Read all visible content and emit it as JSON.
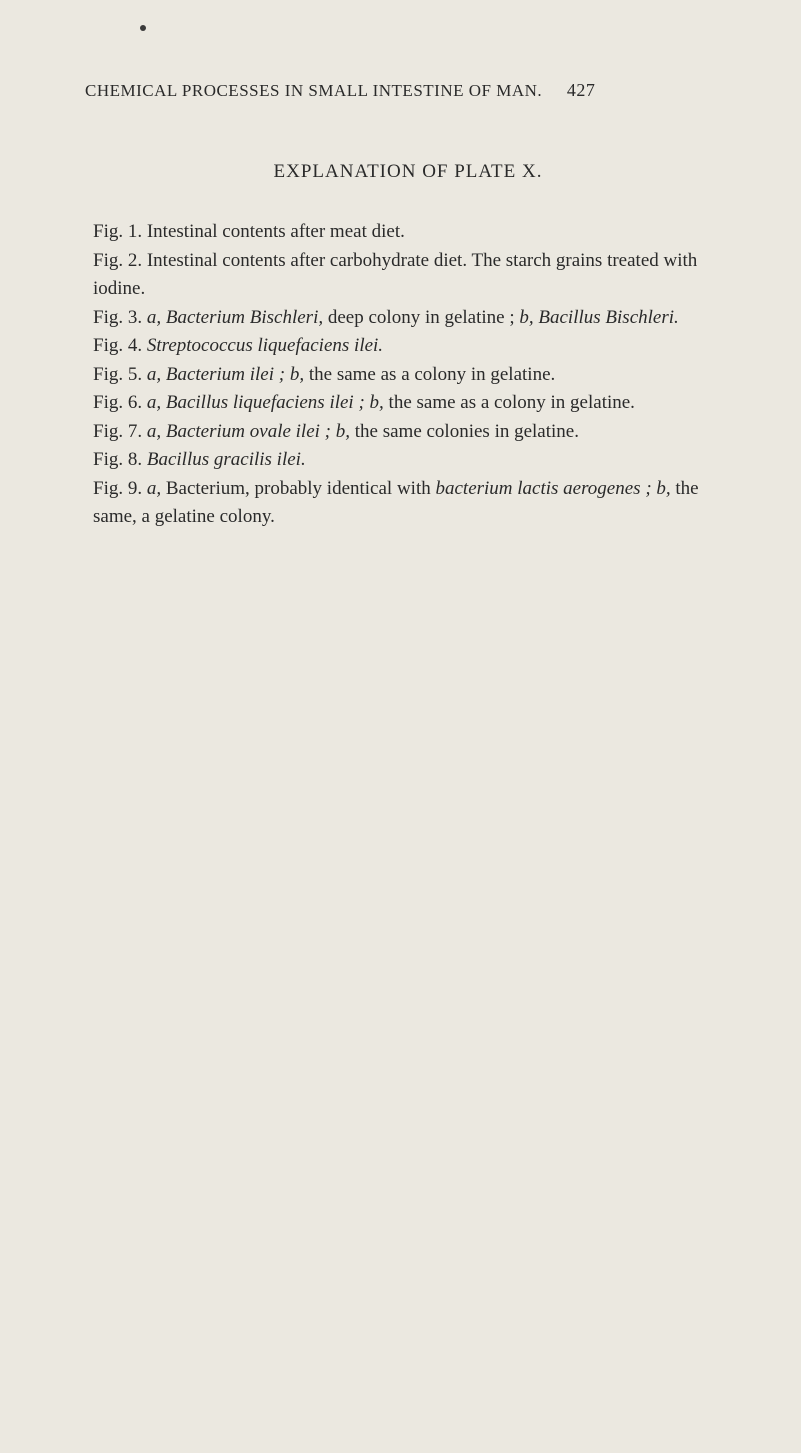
{
  "header": {
    "running_title": "CHEMICAL PROCESSES IN SMALL INTESTINE OF MAN.",
    "page_number": "427"
  },
  "plate_title": "EXPLANATION OF PLATE X.",
  "figures": {
    "fig1": {
      "label": "Fig. 1.",
      "text": "Intestinal contents after meat diet."
    },
    "fig2": {
      "label": "Fig. 2.",
      "text_before": "Intestinal contents after carbohydrate diet.  The starch grains treated with iodine."
    },
    "fig3": {
      "label": "Fig. 3.",
      "a": "a,",
      "species1": "Bacterium Bischleri,",
      "mid": " deep colony in gelatine ; ",
      "b": "b,",
      "species2": " Bacillus Bischleri."
    },
    "fig4": {
      "label": "Fig. 4.",
      "species": "Streptococcus liquefaciens ilei."
    },
    "fig5": {
      "label": "Fig. 5.",
      "a": "a,",
      "species": " Bacterium ilei ; ",
      "b": "b,",
      "text": " the same as a colony in gelatine."
    },
    "fig6": {
      "label": "Fig. 6.",
      "a": "a,",
      "species": " Bacillus liquefaciens ilei ; ",
      "b": "b,",
      "text": " the same as a colony in gelatine."
    },
    "fig7": {
      "label": "Fig. 7.",
      "a": "a,",
      "species": " Bacterium ovale ilei ; ",
      "b": "b,",
      "text": " the same colonies in gelatine."
    },
    "fig8": {
      "label": "Fig. 8.",
      "species": "Bacillus gracilis ilei."
    },
    "fig9": {
      "label": "Fig. 9.",
      "a": "a,",
      "text1": " Bacterium, probably identical with ",
      "species": "bacterium lactis aerogenes ; ",
      "b": "b,",
      "text2": " the same, a gelatine colony."
    }
  },
  "colors": {
    "background": "#ebe8e0",
    "text": "#2a2a2a"
  },
  "typography": {
    "body_fontsize": 19,
    "header_fontsize": 17,
    "title_fontsize": 19,
    "font_family": "serif"
  }
}
